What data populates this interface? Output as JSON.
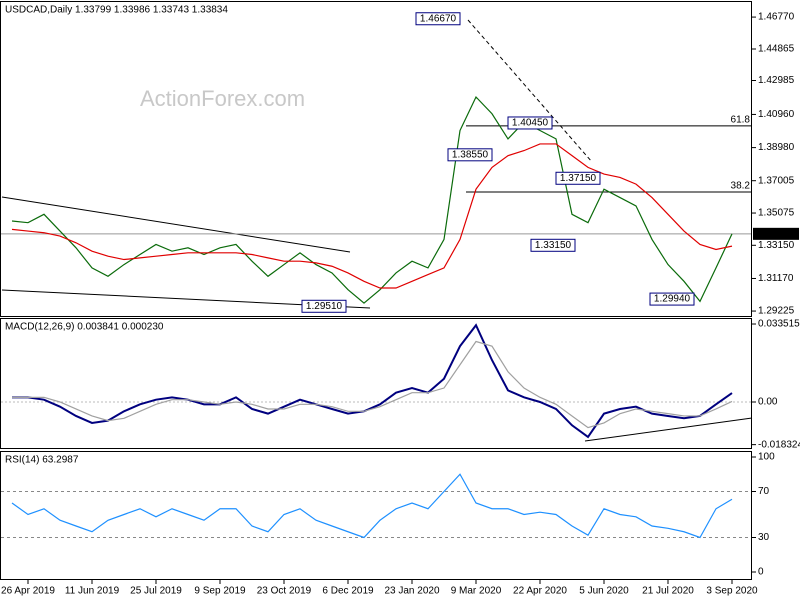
{
  "chart_data": [
    {
      "type": "line",
      "title": "USDCAD,Daily 1.33799 1.33986 1.33743 1.33834",
      "watermark": "ActionForex.com",
      "categories": [
        null,
        "26 Apr 2019",
        null,
        null,
        null,
        "11 Jun 2019",
        null,
        null,
        null,
        "25 Jul 2019",
        null,
        null,
        null,
        "9 Sep 2019",
        null,
        null,
        null,
        "23 Oct 2019",
        null,
        null,
        null,
        "6 Dec 2019",
        null,
        null,
        null,
        "23 Jan 2020",
        null,
        null,
        null,
        "9 Mar 2020",
        null,
        null,
        null,
        "22 Apr 2020",
        null,
        null,
        null,
        "5 Jun 2020",
        null,
        null,
        null,
        "21 Jul 2020",
        null,
        null,
        null,
        "3 Sep 2020"
      ],
      "series": [
        {
          "color": "#0b6b0b",
          "values": [
            1.346,
            1.345,
            1.35,
            1.34,
            1.33,
            1.318,
            1.313,
            1.32,
            1.326,
            1.332,
            1.328,
            1.33,
            1.326,
            1.33,
            1.332,
            1.322,
            1.313,
            1.32,
            1.327,
            1.32,
            1.315,
            1.305,
            1.297,
            1.305,
            1.315,
            1.322,
            1.318,
            1.335,
            1.4,
            1.42,
            1.41,
            1.395,
            1.405,
            1.4,
            1.395,
            1.35,
            1.345,
            1.365,
            1.36,
            1.355,
            1.335,
            1.32,
            1.31,
            1.298,
            1.318,
            1.33834
          ]
        },
        {
          "color": "#e00000",
          "values": [
            1.341,
            1.34,
            1.339,
            1.337,
            1.333,
            1.328,
            1.325,
            1.323,
            1.324,
            1.325,
            1.326,
            1.327,
            1.327,
            1.327,
            1.327,
            1.326,
            1.324,
            1.322,
            1.322,
            1.321,
            1.319,
            1.315,
            1.31,
            1.306,
            1.306,
            1.31,
            1.314,
            1.318,
            1.335,
            1.365,
            1.378,
            1.385,
            1.388,
            1.392,
            1.392,
            1.385,
            1.378,
            1.374,
            1.372,
            1.368,
            1.36,
            1.35,
            1.34,
            1.332,
            1.329,
            1.331
          ]
        }
      ],
      "ylim": [
        1.2893,
        1.4767
      ],
      "yticks": [
        {
          "value": 1.4677,
          "label": "1.46770"
        },
        {
          "value": 1.44865,
          "label": "1.44865"
        },
        {
          "value": 1.42985,
          "label": "1.42985"
        },
        {
          "value": 1.4096,
          "label": "1.40960"
        },
        {
          "value": 1.3898,
          "label": "1.38980"
        },
        {
          "value": 1.37005,
          "label": "1.37005"
        },
        {
          "value": 1.35075,
          "label": "1.35075"
        },
        {
          "value": 1.3315,
          "label": "1.33150"
        },
        {
          "value": 1.3117,
          "label": "1.31170"
        },
        {
          "value": 1.29225,
          "label": "1.29225"
        }
      ],
      "last_price": {
        "value": 1.33834,
        "label": "1.33834"
      },
      "annotations": [
        {
          "price": 1.4667,
          "label": "1.46670"
        },
        {
          "price": 1.3855,
          "label": "1.38550"
        },
        {
          "price": 1.4045,
          "label": "1.40450"
        },
        {
          "price": 1.3715,
          "label": "1.37150"
        },
        {
          "price": 1.3315,
          "label": "1.33150"
        },
        {
          "price": 1.2994,
          "label": "1.29940"
        },
        {
          "price": 1.2951,
          "label": "1.29510"
        }
      ],
      "fib_levels": [
        {
          "ratio": 61.8,
          "price": 1.4028
        },
        {
          "ratio": 38.2,
          "price": 1.3633
        }
      ]
    },
    {
      "type": "line",
      "title": "MACD(12,26,9) 0.003841 0.000230",
      "series": [
        {
          "color": "#00007f",
          "values": [
            0.002,
            0.002,
            0.001,
            -0.002,
            -0.006,
            -0.009,
            -0.008,
            -0.004,
            -0.001,
            0.001,
            0.002,
            0.001,
            -0.001,
            -0.001,
            0.002,
            -0.003,
            -0.005,
            -0.002,
            0.001,
            -0.001,
            -0.003,
            -0.005,
            -0.004,
            -0.001,
            0.004,
            0.006,
            0.004,
            0.01,
            0.024,
            0.033,
            0.018,
            0.005,
            0.002,
            0.0,
            -0.003,
            -0.01,
            -0.015,
            -0.005,
            -0.003,
            -0.002,
            -0.005,
            -0.006,
            -0.007,
            -0.006,
            -0.001,
            0.003841
          ]
        },
        {
          "color": "#a0a0a0",
          "values": [
            0.002,
            0.002,
            0.002,
            0.0,
            -0.003,
            -0.006,
            -0.008,
            -0.007,
            -0.004,
            -0.001,
            0.001,
            0.001,
            0.0,
            -0.001,
            0.0,
            -0.001,
            -0.003,
            -0.003,
            -0.001,
            -0.001,
            -0.002,
            -0.004,
            -0.004,
            -0.002,
            0.001,
            0.004,
            0.004,
            0.006,
            0.016,
            0.026,
            0.024,
            0.013,
            0.006,
            0.002,
            -0.001,
            -0.006,
            -0.011,
            -0.009,
            -0.005,
            -0.003,
            -0.004,
            -0.005,
            -0.006,
            -0.006,
            -0.003,
            0.00023
          ]
        }
      ],
      "ylim": [
        -0.01977,
        0.03524
      ],
      "yticks": [
        {
          "value": 0.033515,
          "label": "0.033515"
        },
        {
          "value": 0,
          "label": "0.00"
        },
        {
          "value": -0.018324,
          "label": "-0.018324"
        }
      ]
    },
    {
      "type": "line",
      "title": "RSI(14) 63.2987",
      "series": [
        {
          "color": "#1e90ff",
          "values": [
            60,
            50,
            55,
            45,
            40,
            35,
            45,
            50,
            55,
            48,
            55,
            50,
            45,
            55,
            55,
            40,
            35,
            50,
            55,
            45,
            40,
            35,
            30,
            45,
            55,
            60,
            55,
            70,
            85,
            60,
            55,
            55,
            50,
            52,
            50,
            40,
            32,
            55,
            50,
            48,
            40,
            38,
            35,
            30,
            55,
            63.2987
          ]
        }
      ],
      "ylim": [
        0,
        100
      ],
      "yticks": [
        100,
        70,
        30,
        0
      ]
    }
  ]
}
